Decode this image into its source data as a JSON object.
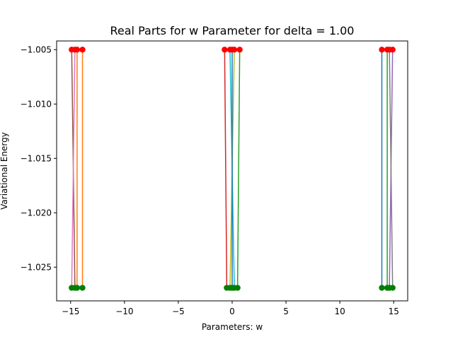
{
  "chart_data": {
    "type": "line",
    "title": "Real Parts for w Parameter for delta = 1.00",
    "xlabel": "Parameters: w",
    "ylabel": "Variational Energy",
    "xlim": [
      -16.3,
      16.3
    ],
    "ylim": [
      -1.0281,
      -1.0042
    ],
    "xticks": [
      -15,
      -10,
      -5,
      0,
      5,
      10,
      15
    ],
    "xtick_labels": [
      "−15",
      "−10",
      "−5",
      "0",
      "5",
      "10",
      "15"
    ],
    "yticks": [
      -1.005,
      -1.01,
      -1.015,
      -1.02,
      -1.025
    ],
    "ytick_labels": [
      "−1.005",
      "−1.010",
      "−1.015",
      "−1.020",
      "−1.025"
    ],
    "grid": false,
    "y_top": -1.005,
    "y_bottom": -1.0269,
    "top_marker_color": "#ff0000",
    "bottom_marker_color": "#008000",
    "series": [
      {
        "color": "#1f77b4",
        "x_top": 13.9,
        "x_bottom": 13.9
      },
      {
        "color": "#ff7f0e",
        "x_top": -13.9,
        "x_bottom": -13.9
      },
      {
        "color": "#2ca02c",
        "x_top": 0.7,
        "x_bottom": 0.5
      },
      {
        "color": "#d62728",
        "x_top": -0.7,
        "x_bottom": -0.5
      },
      {
        "color": "#9467bd",
        "x_top": 14.9,
        "x_bottom": 14.6
      },
      {
        "color": "#8c564b",
        "x_top": -14.9,
        "x_bottom": -14.6
      },
      {
        "color": "#e377c2",
        "x_top": -14.6,
        "x_bottom": -14.9
      },
      {
        "color": "#7f7f7f",
        "x_top": 14.6,
        "x_bottom": 14.9
      },
      {
        "color": "#bcbd22",
        "x_top": 0.2,
        "x_bottom": -0.2
      },
      {
        "color": "#17becf",
        "x_top": -0.2,
        "x_bottom": 0.2
      },
      {
        "color": "#1f77b4",
        "x_top": 0.0,
        "x_bottom": 0.0
      },
      {
        "color": "#ff7f0e",
        "x_top": -14.4,
        "x_bottom": -14.4
      },
      {
        "color": "#2ca02c",
        "x_top": 14.4,
        "x_bottom": 14.4
      }
    ]
  }
}
